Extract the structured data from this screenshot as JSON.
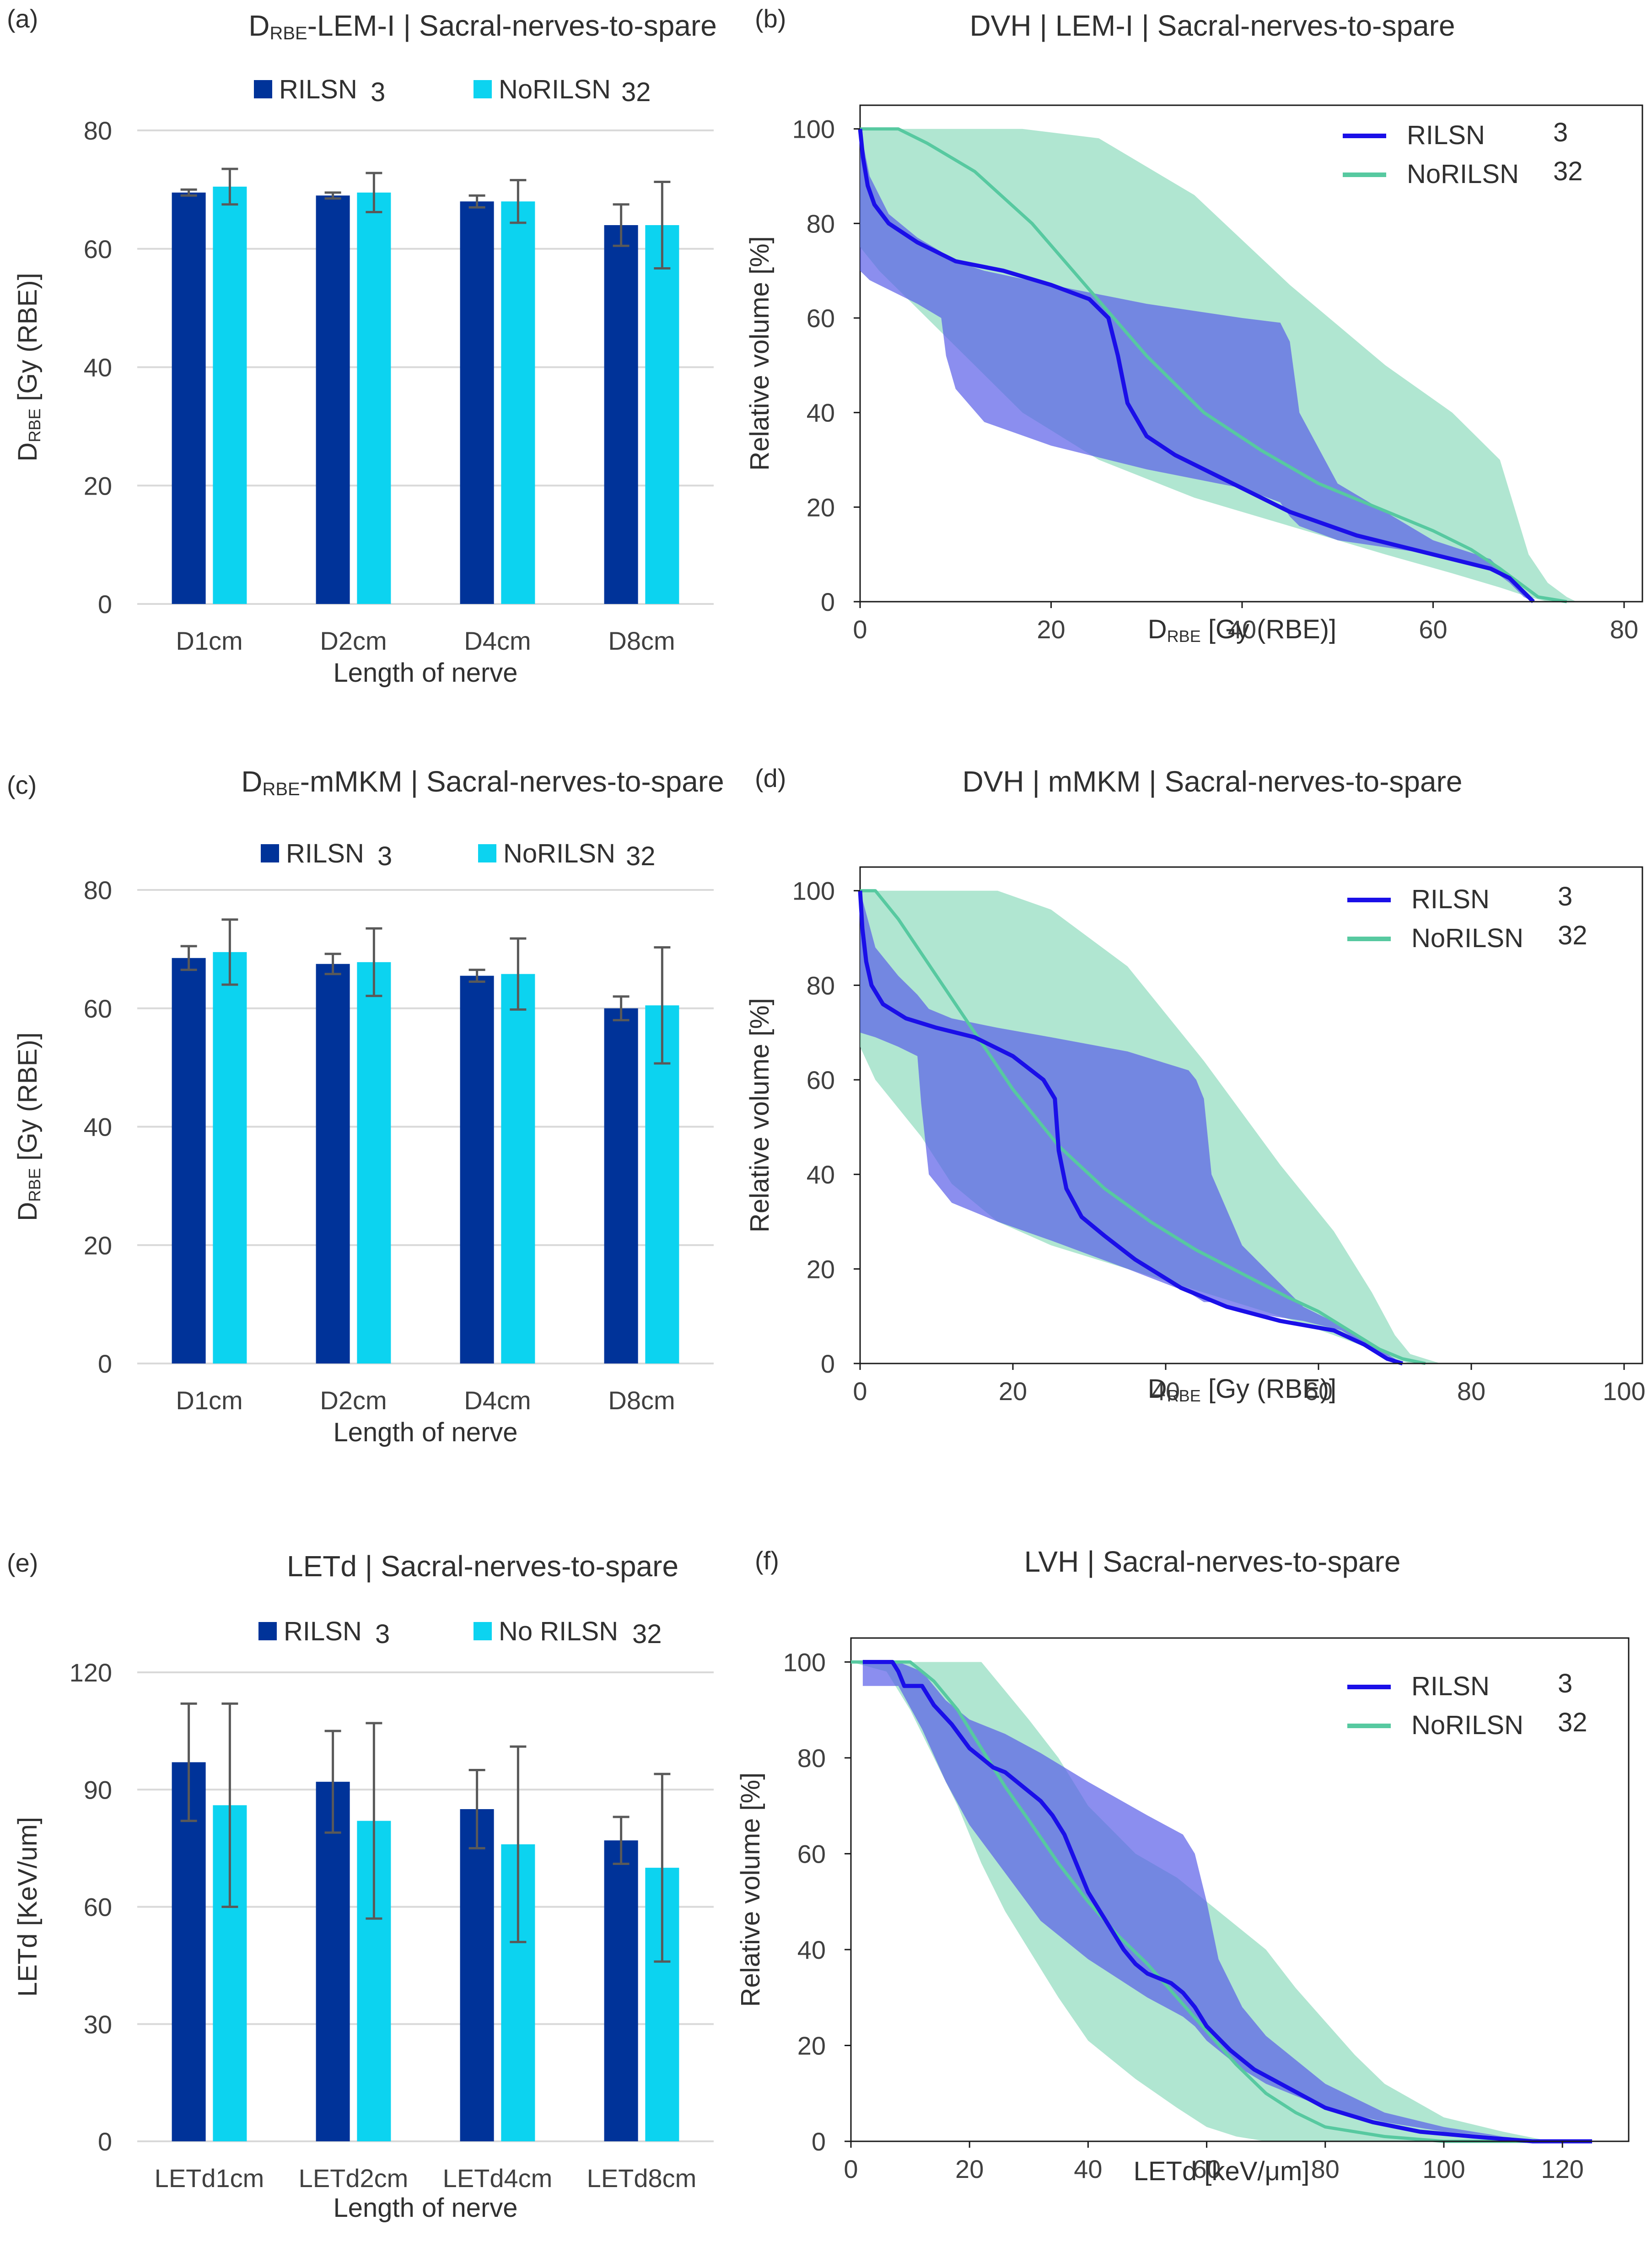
{
  "colors": {
    "rilsn": "#003399",
    "norilsn": "#0cd3f0",
    "rilsn_line": "#1a0fe8",
    "norilsn_line": "#57c9a0",
    "rilsn_band": "#5a5ee8",
    "norilsn_band": "#8fdcbe",
    "grid": "#d9d9d9",
    "error_bar": "#595959"
  },
  "chart_data": [
    {
      "id": "a",
      "panel_label": "(a)",
      "type": "bar",
      "title": "D_RBE-LEM-I | Sacral-nerves-to-spare",
      "title_main": "D",
      "title_sub": "RBE",
      "title_rest": "-LEM-I | Sacral-nerves-to-spare",
      "ylabel": "D_RBE [Gy (RBE)]",
      "ylabel_main": "D",
      "ylabel_sub": "RBE",
      "ylabel_rest": " [Gy (RBE)]",
      "xlabel": "Length of nerve",
      "ylim": [
        0,
        80
      ],
      "yticks": [
        0,
        20,
        40,
        60,
        80
      ],
      "categories": [
        "D1cm",
        "D2cm",
        "D4cm",
        "D8cm"
      ],
      "series": [
        {
          "name": "RILSN",
          "count": "3",
          "values": [
            69.5,
            69.0,
            68.0,
            64.0
          ],
          "errors": [
            0.5,
            0.5,
            1.0,
            3.5
          ]
        },
        {
          "name": "NoRILSN",
          "count": "32",
          "values": [
            70.5,
            69.5,
            68.0,
            64.0
          ],
          "errors": [
            3.0,
            3.3,
            3.6,
            7.3
          ]
        }
      ],
      "legend_position": "top"
    },
    {
      "id": "b",
      "panel_label": "(b)",
      "type": "area",
      "title": "DVH | LEM-I | Sacral-nerves-to-spare",
      "xlabel": "D_RBE [Gy (RBE)]",
      "xlabel_main": "D",
      "xlabel_sub": "RBE",
      "xlabel_rest": " [Gy (RBE)]",
      "ylabel": "Relative volume [%]",
      "xlim": [
        0,
        80
      ],
      "ylim": [
        0,
        105
      ],
      "xticks": [
        0,
        20,
        40,
        60,
        80
      ],
      "yticks": [
        0,
        20,
        40,
        60,
        80,
        100
      ],
      "legend_position": "top-right",
      "series": [
        {
          "name": "RILSN",
          "count": "3",
          "kind": "mean_with_band",
          "x": [
            0,
            0.3,
            0.8,
            1.5,
            3,
            6,
            10,
            15,
            20,
            24,
            26,
            27,
            28,
            30,
            33,
            38,
            45,
            52,
            60,
            66,
            68,
            69.5,
            70.5
          ],
          "mean": [
            100,
            94,
            88,
            84,
            80,
            76,
            72,
            70,
            67,
            64,
            60,
            52,
            42,
            35,
            31,
            26,
            19,
            14,
            10,
            7,
            5,
            2,
            0
          ],
          "band_x": [
            0,
            1,
            3,
            6,
            8.5,
            9,
            10,
            13,
            20,
            30,
            40,
            44,
            45,
            46,
            50,
            60,
            66,
            68,
            69.5,
            70.5
          ],
          "band_lower": [
            70,
            68,
            66,
            63,
            60,
            52,
            45,
            38,
            33,
            28,
            24,
            21,
            18,
            16,
            13,
            10,
            7,
            4,
            1,
            0
          ],
          "band_upper": [
            100,
            90,
            82,
            77,
            74,
            73,
            72,
            70,
            67,
            63,
            60,
            59,
            55,
            40,
            25,
            13,
            9,
            5,
            2,
            0
          ]
        },
        {
          "name": "NoRILSN",
          "count": "32",
          "kind": "mean_with_band",
          "x": [
            0,
            2,
            4,
            7,
            12,
            18,
            24,
            30,
            36,
            42,
            48,
            54,
            60,
            64,
            67,
            69,
            71,
            74
          ],
          "mean": [
            100,
            100,
            100,
            97,
            91,
            80,
            66,
            52,
            40,
            32,
            25,
            20,
            15,
            11,
            7,
            4,
            1,
            0
          ],
          "band_x": [
            0,
            2,
            4,
            7,
            12,
            17,
            25,
            35,
            45,
            55,
            62,
            67,
            70,
            72,
            74,
            75
          ],
          "band_lower": [
            75,
            70,
            66,
            60,
            50,
            40,
            30,
            22,
            16,
            10,
            6,
            3,
            1,
            0,
            0,
            0
          ],
          "band_upper": [
            100,
            100,
            100,
            100,
            100,
            100,
            98,
            86,
            67,
            50,
            40,
            30,
            10,
            4,
            1,
            0
          ]
        }
      ]
    },
    {
      "id": "c",
      "panel_label": "(c)",
      "type": "bar",
      "title": "D_RBE-mMKM | Sacral-nerves-to-spare",
      "title_main": "D",
      "title_sub": "RBE",
      "title_rest": "-mMKM | Sacral-nerves-to-spare",
      "ylabel": "D_RBE [Gy (RBE)]",
      "ylabel_main": "D",
      "ylabel_sub": "RBE",
      "ylabel_rest": " [Gy (RBE)]",
      "xlabel": "Length of nerve",
      "ylim": [
        0,
        80
      ],
      "yticks": [
        0,
        20,
        40,
        60,
        80
      ],
      "categories": [
        "D1cm",
        "D2cm",
        "D4cm",
        "D8cm"
      ],
      "series": [
        {
          "name": "RILSN",
          "count": "3",
          "values": [
            68.5,
            67.5,
            65.5,
            60.0
          ],
          "errors": [
            2.0,
            1.7,
            1.0,
            2.0
          ]
        },
        {
          "name": "NoRILSN",
          "count": "32",
          "values": [
            69.5,
            67.8,
            65.8,
            60.5
          ],
          "errors": [
            5.5,
            5.7,
            6.0,
            9.8
          ]
        }
      ],
      "legend_position": "top"
    },
    {
      "id": "d",
      "panel_label": "(d)",
      "type": "area",
      "title": "DVH | mMKM | Sacral-nerves-to-spare",
      "xlabel": "D_RBE [Gy (RBE)]",
      "xlabel_main": "D",
      "xlabel_sub": "RBE",
      "xlabel_rest": " [Gy (RBE)]",
      "ylabel": "Relative volume [%]",
      "xlim": [
        0,
        100
      ],
      "ylim": [
        0,
        105
      ],
      "xticks": [
        0,
        20,
        40,
        60,
        80,
        100
      ],
      "yticks": [
        0,
        20,
        40,
        60,
        80,
        100
      ],
      "legend_position": "top-right",
      "series": [
        {
          "name": "RILSN",
          "count": "3",
          "kind": "mean_with_band",
          "x": [
            0,
            0.3,
            0.8,
            1.5,
            3,
            6,
            10,
            15,
            20,
            24,
            25.5,
            26,
            27,
            29,
            32,
            36,
            42,
            48,
            55,
            62,
            66,
            69,
            71
          ],
          "mean": [
            100,
            92,
            85,
            80,
            76,
            73,
            71,
            69,
            65,
            60,
            56,
            45,
            37,
            31,
            27,
            22,
            16,
            12,
            9,
            7,
            4,
            1,
            0
          ],
          "band_x": [
            0,
            2,
            5,
            7.5,
            8,
            9,
            12,
            18,
            25,
            35,
            43,
            44,
            45,
            46,
            50,
            58,
            63,
            66,
            69,
            71
          ],
          "band_lower": [
            70,
            69,
            67,
            65,
            55,
            40,
            34,
            30,
            26,
            20,
            15,
            14,
            13,
            13,
            11,
            9,
            7,
            4,
            1,
            0
          ],
          "band_upper": [
            100,
            88,
            82,
            78,
            77,
            75,
            73,
            71,
            69,
            66,
            62,
            60,
            56,
            40,
            25,
            12,
            8,
            5,
            2,
            0
          ]
        },
        {
          "name": "NoRILSN",
          "count": "32",
          "kind": "mean_with_band",
          "x": [
            0,
            1,
            2,
            5,
            10,
            15,
            20,
            26,
            32,
            38,
            44,
            50,
            56,
            60,
            64,
            68,
            71,
            74
          ],
          "mean": [
            100,
            100,
            100,
            94,
            82,
            70,
            58,
            46,
            37,
            30,
            24,
            19,
            14,
            11,
            7,
            3,
            1,
            0
          ],
          "band_x": [
            0,
            2,
            5,
            8,
            12,
            18,
            25,
            35,
            45,
            55,
            62,
            67,
            70,
            72,
            74,
            76
          ],
          "band_lower": [
            67,
            60,
            54,
            48,
            38,
            30,
            25,
            20,
            15,
            10,
            6,
            3,
            1,
            0,
            0,
            0
          ],
          "band_upper": [
            100,
            100,
            100,
            100,
            100,
            100,
            96,
            84,
            64,
            42,
            28,
            15,
            6,
            2,
            1,
            0
          ]
        }
      ]
    },
    {
      "id": "e",
      "panel_label": "(e)",
      "type": "bar",
      "title": "LETd | Sacral-nerves-to-spare",
      "ylabel": "LETd [KeV/um]",
      "xlabel": "Length of nerve",
      "ylim": [
        0,
        120
      ],
      "yticks": [
        0,
        30,
        60,
        90,
        120
      ],
      "categories": [
        "LETd1cm",
        "LETd2cm",
        "LETd4cm",
        "LETd8cm"
      ],
      "series": [
        {
          "name": "RILSN",
          "count": "3",
          "values": [
            97,
            92,
            85,
            77
          ],
          "errors": [
            15,
            13,
            10,
            6
          ]
        },
        {
          "name": "No RILSN",
          "count": "32",
          "values": [
            86,
            82,
            76,
            70
          ],
          "errors": [
            26,
            25,
            25,
            24
          ]
        }
      ],
      "legend_position": "top"
    },
    {
      "id": "f",
      "panel_label": "(f)",
      "type": "area",
      "title": "LVH | Sacral-nerves-to-spare",
      "xlabel": "LETd [keV/μm]",
      "ylabel": "Relative volume [%]",
      "xlim": [
        0,
        125
      ],
      "ylim": [
        0,
        105
      ],
      "xticks": [
        0,
        20,
        40,
        60,
        80,
        100,
        120
      ],
      "yticks": [
        0,
        20,
        40,
        60,
        80,
        100
      ],
      "legend_position": "top-right",
      "series": [
        {
          "name": "RILSN",
          "count": "3",
          "kind": "mean_with_band",
          "x": [
            2,
            6,
            7,
            8,
            9,
            10,
            12,
            14,
            17,
            20,
            22,
            24,
            26,
            28,
            30,
            32,
            34,
            36,
            38,
            40,
            42,
            44,
            46,
            48,
            50,
            52,
            54,
            56,
            58,
            60,
            64,
            68,
            74,
            80,
            88,
            96,
            105,
            115,
            125
          ],
          "mean": [
            100,
            100,
            100,
            98,
            95,
            95,
            95,
            91,
            87,
            82,
            80,
            78,
            77,
            75,
            73,
            71,
            68,
            64,
            58,
            52,
            48,
            44,
            40,
            37,
            35,
            34,
            33,
            31,
            28,
            24,
            19,
            15,
            11,
            7,
            4,
            2,
            1,
            0,
            0
          ],
          "band_x": [
            2,
            4,
            8,
            12,
            16,
            20,
            26,
            32,
            40,
            50,
            56,
            58,
            60,
            62,
            66,
            70,
            80,
            90,
            100,
            110,
            120,
            125
          ],
          "band_lower": [
            95,
            95,
            95,
            86,
            75,
            66,
            56,
            46,
            38,
            30,
            26,
            24,
            21,
            19,
            15,
            12,
            7,
            4,
            2,
            1,
            0,
            0
          ],
          "band_upper": [
            100,
            100,
            100,
            98,
            92,
            88,
            85,
            81,
            75,
            68,
            64,
            60,
            50,
            38,
            28,
            22,
            12,
            6,
            3,
            1,
            0,
            0
          ]
        },
        {
          "name": "NoRILSN",
          "count": "32",
          "kind": "mean_with_band",
          "x": [
            0,
            5,
            10,
            14,
            18,
            22,
            26,
            30,
            35,
            40,
            45,
            50,
            55,
            60,
            65,
            70,
            75,
            80,
            90,
            100,
            110,
            118
          ],
          "mean": [
            100,
            100,
            100,
            96,
            90,
            82,
            74,
            67,
            58,
            50,
            43,
            37,
            30,
            23,
            16,
            10,
            6,
            3,
            1,
            0,
            0,
            0
          ],
          "band_x": [
            0,
            6,
            10,
            14,
            18,
            22,
            26,
            30,
            35,
            40,
            48,
            55,
            60,
            65,
            70,
            75,
            80,
            85,
            90,
            100,
            110,
            118
          ],
          "band_lower": [
            100,
            98,
            90,
            80,
            70,
            58,
            48,
            40,
            30,
            21,
            13,
            7,
            3,
            1,
            0,
            0,
            0,
            0,
            0,
            0,
            0,
            0
          ],
          "band_upper": [
            100,
            100,
            100,
            100,
            100,
            100,
            94,
            88,
            80,
            70,
            60,
            55,
            50,
            45,
            40,
            32,
            25,
            18,
            12,
            5,
            2,
            0
          ]
        }
      ]
    }
  ]
}
